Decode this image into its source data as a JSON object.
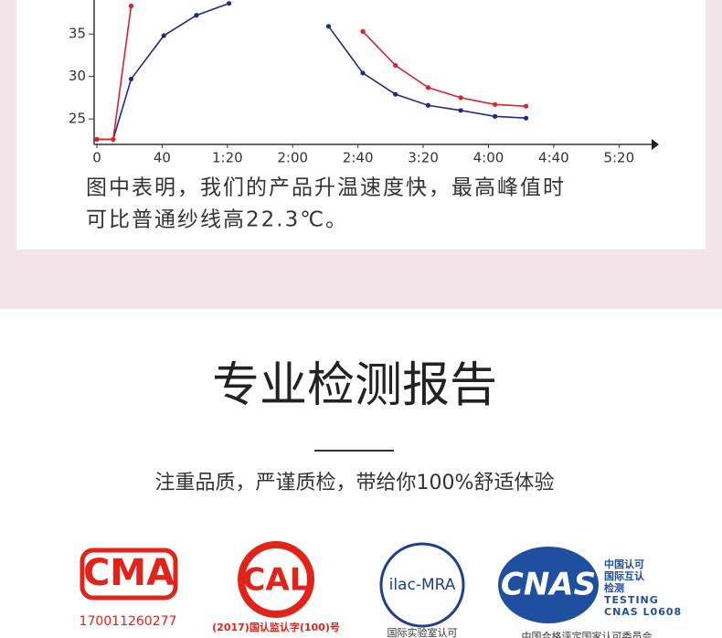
{
  "chart_data": {
    "type": "line",
    "xlim": [
      0,
      340
    ],
    "ylim": [
      22,
      39
    ],
    "xticks": [
      0,
      40,
      {
        "value": 80,
        "label": "1:20"
      },
      {
        "value": 120,
        "label": "2:00"
      },
      {
        "value": 160,
        "label": "2:40"
      },
      {
        "value": 200,
        "label": "3:20"
      },
      {
        "value": 240,
        "label": "4:00"
      },
      {
        "value": 280,
        "label": "4:40"
      },
      {
        "value": 320,
        "label": "5:20"
      }
    ],
    "yticks": [
      25,
      30,
      35
    ],
    "series": [
      {
        "color": "#1f2a8c",
        "x": [
          0,
          10,
          21,
          41,
          61,
          81,
          null,
          142,
          163,
          183,
          203,
          223,
          244,
          263
        ],
        "values": [
          22.6,
          22.6,
          29.7,
          34.8,
          37.2,
          38.6,
          null,
          35.9,
          30.4,
          27.9,
          26.6,
          26.0,
          25.3,
          25.1
        ]
      },
      {
        "color": "#e0202a",
        "x": [
          0,
          10,
          21,
          null,
          163,
          183,
          203,
          223,
          244,
          263
        ],
        "values": [
          22.6,
          22.6,
          38.3,
          null,
          35.3,
          31.3,
          28.7,
          27.5,
          26.7,
          26.5
        ]
      }
    ],
    "caption": [
      "图中表明，我们的产品升温速度快，最高峰值时",
      "可比普通纱线高22.3℃。"
    ]
  },
  "section": {
    "title": "专业检测报告",
    "subtitle": "注重品质，严谨质检，带给你100%舒适体验"
  },
  "logos": [
    {
      "mark": "CMA",
      "label": "170011260277"
    },
    {
      "mark": "CAL",
      "label": "(2017)国认监认字(100)号"
    },
    {
      "mark": "ilac-MRA",
      "label": "国际实验室认可"
    },
    {
      "mark": "CNAS",
      "lines": [
        "中国认可",
        "国际互认",
        "检测",
        "TESTING",
        "CNAS L0608"
      ],
      "label": "中国合格评定国家认可委员会"
    }
  ]
}
